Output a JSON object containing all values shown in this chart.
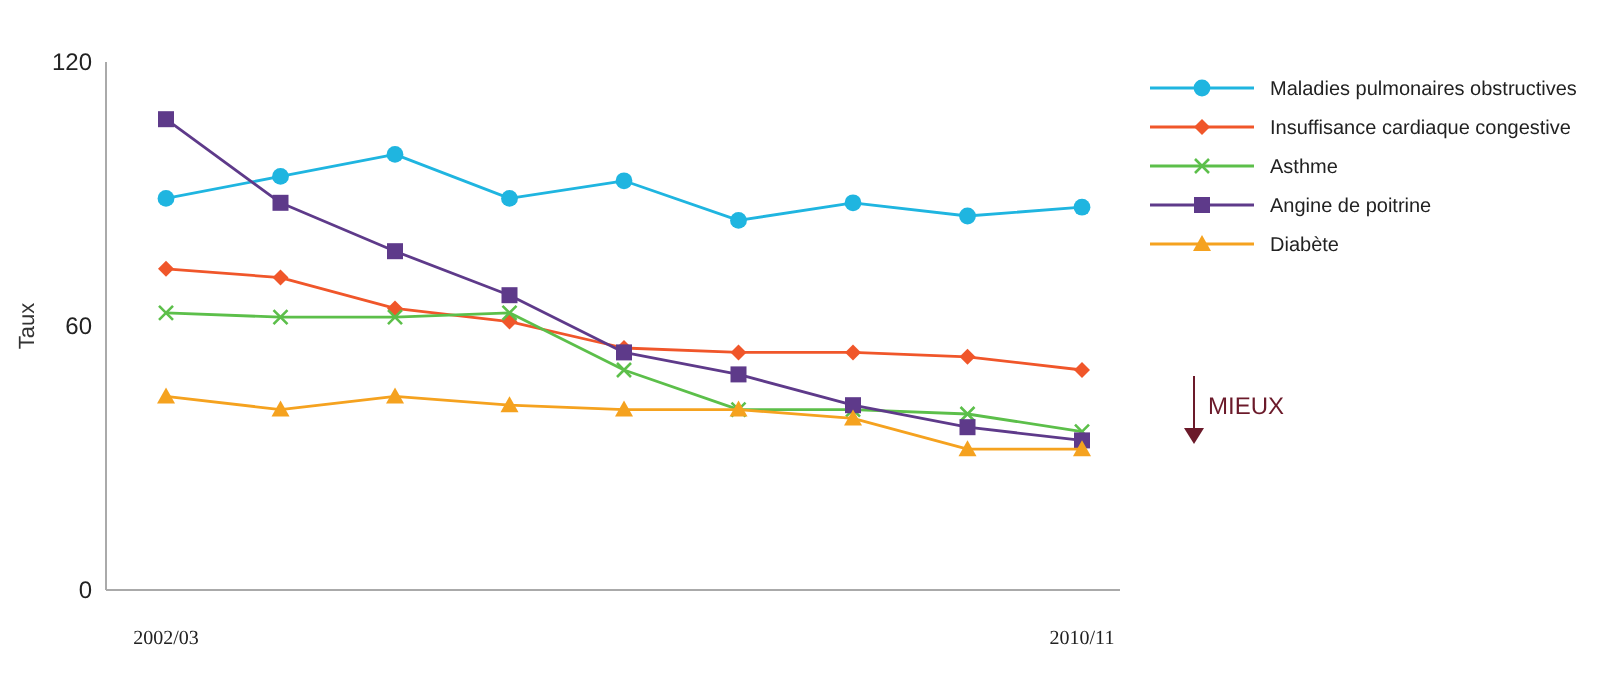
{
  "chart_data": {
    "type": "line",
    "ylabel": "Taux",
    "categories": [
      "2002/03",
      null,
      null,
      null,
      null,
      null,
      null,
      null,
      "2010/11"
    ],
    "ylim": [
      0,
      120
    ],
    "yticks": [
      0,
      60,
      120
    ],
    "grid": false,
    "legend": "top right",
    "annotations": [
      "MIEUX"
    ],
    "series": [
      {
        "name": "Maladies pulmonaires obstructives",
        "color": "#1fb5e0",
        "marker": "circle",
        "values": [
          89,
          94,
          99,
          89,
          93,
          84,
          88,
          85,
          87
        ]
      },
      {
        "name": "Insuffisance cardiaque congestive",
        "color": "#f0562a",
        "marker": "diamond",
        "values": [
          73,
          71,
          64,
          61,
          55,
          54,
          54,
          53,
          50
        ]
      },
      {
        "name": "Asthme",
        "color": "#5cbf4a",
        "marker": "cross",
        "values": [
          63,
          62,
          62,
          63,
          50,
          41,
          41,
          40,
          36
        ]
      },
      {
        "name": "Angine de poitrine",
        "color": "#5e3a8a",
        "marker": "square",
        "values": [
          107,
          88,
          77,
          67,
          54,
          49,
          42,
          37,
          34
        ]
      },
      {
        "name": "Diabète",
        "color": "#f5a21f",
        "marker": "triangle",
        "values": [
          44,
          41,
          44,
          42,
          41,
          41,
          39,
          32,
          32
        ]
      }
    ]
  }
}
